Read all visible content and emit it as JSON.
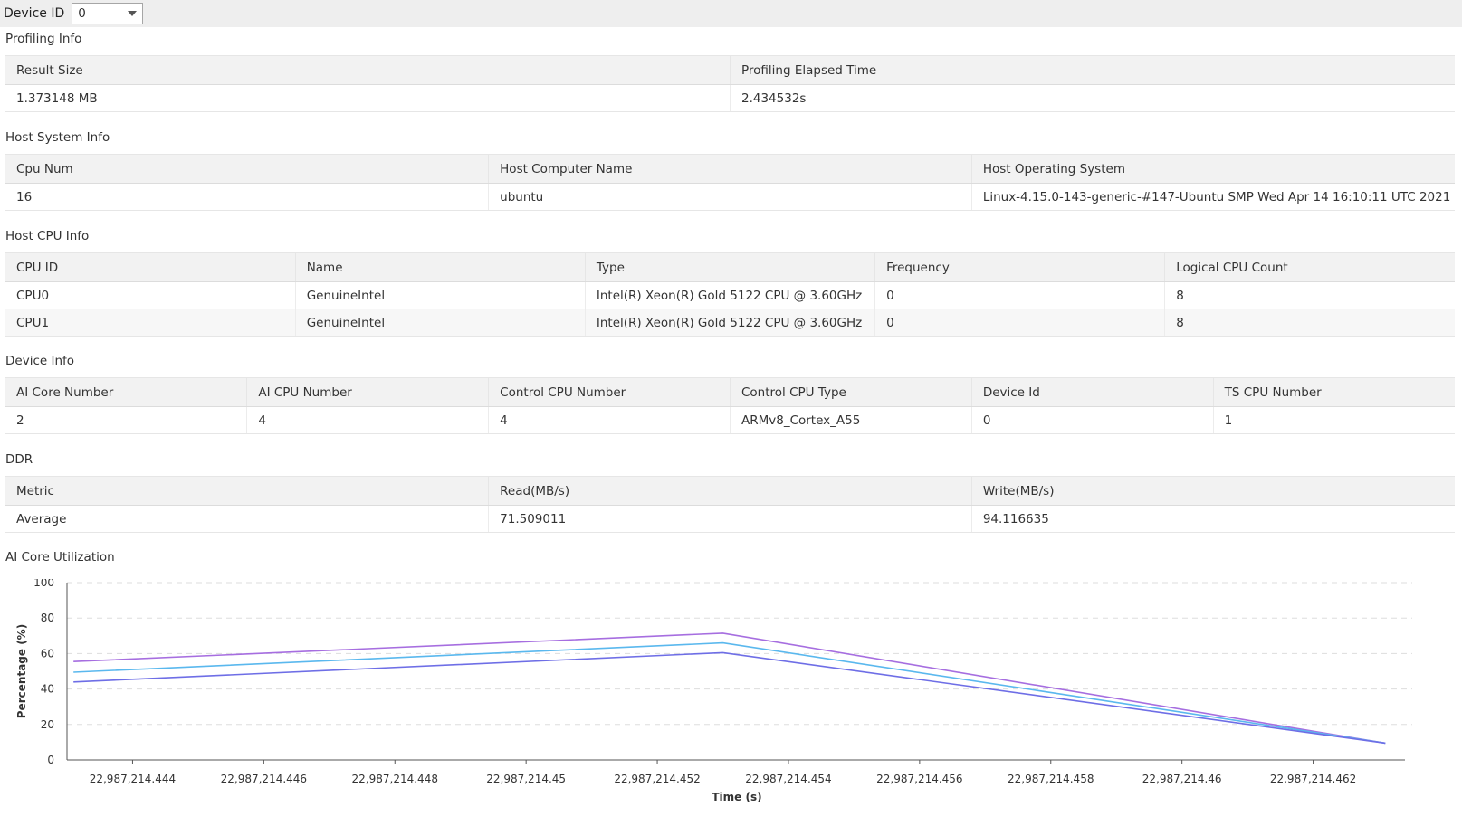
{
  "topbar": {
    "label": "Device ID",
    "device_select_value": "0"
  },
  "profiling": {
    "title": "Profiling Info",
    "headers": [
      "Result Size",
      "Profiling Elapsed Time"
    ],
    "rows": [
      [
        "1.373148 MB",
        "2.434532s"
      ]
    ]
  },
  "host_system": {
    "title": "Host System Info",
    "headers": [
      "Cpu Num",
      "Host Computer Name",
      "Host Operating System"
    ],
    "rows": [
      [
        "16",
        "ubuntu",
        "Linux-4.15.0-143-generic-#147-Ubuntu SMP Wed Apr 14 16:10:11 UTC 2021"
      ]
    ]
  },
  "host_cpu": {
    "title": "Host CPU Info",
    "headers": [
      "CPU ID",
      "Name",
      "Type",
      "Frequency",
      "Logical CPU Count"
    ],
    "rows": [
      [
        "CPU0",
        "GenuineIntel",
        "Intel(R) Xeon(R) Gold 5122 CPU @ 3.60GHz",
        "0",
        "8"
      ],
      [
        "CPU1",
        "GenuineIntel",
        "Intel(R) Xeon(R) Gold 5122 CPU @ 3.60GHz",
        "0",
        "8"
      ]
    ]
  },
  "device_info": {
    "title": "Device Info",
    "headers": [
      "AI Core Number",
      "AI CPU Number",
      "Control CPU Number",
      "Control CPU Type",
      "Device Id",
      "TS CPU Number"
    ],
    "rows": [
      [
        "2",
        "4",
        "4",
        "ARMv8_Cortex_A55",
        "0",
        "1"
      ]
    ]
  },
  "ddr": {
    "title": "DDR",
    "headers": [
      "Metric",
      "Read(MB/s)",
      "Write(MB/s)"
    ],
    "rows": [
      [
        "Average",
        "71.509011",
        "94.116635"
      ]
    ]
  },
  "ai_core": {
    "title": "AI Core Utilization"
  },
  "chart_data": {
    "type": "line",
    "title": "",
    "xlabel": "Time (s)",
    "ylabel": "Percentage (%)",
    "xlim": [
      22987214.443,
      22987214.4634
    ],
    "ylim": [
      0,
      100
    ],
    "grid": "horizontal-dashed",
    "x_tick_labels": [
      "22,987,214.444",
      "22,987,214.446",
      "22,987,214.448",
      "22,987,214.45",
      "22,987,214.452",
      "22,987,214.454",
      "22,987,214.456",
      "22,987,214.458",
      "22,987,214.46",
      "22,987,214.462"
    ],
    "x_ticks": [
      22987214.444,
      22987214.446,
      22987214.448,
      22987214.45,
      22987214.452,
      22987214.454,
      22987214.456,
      22987214.458,
      22987214.46,
      22987214.462
    ],
    "y_ticks": [
      0,
      20,
      40,
      60,
      80,
      100
    ],
    "x": [
      22987214.4431,
      22987214.453,
      22987214.4631
    ],
    "series": [
      {
        "color": "#a66ee0",
        "values": [
          55.5,
          71.5,
          9.5
        ]
      },
      {
        "color": "#5ab8ee",
        "values": [
          49.5,
          66,
          9.5
        ]
      },
      {
        "color": "#6e6ee6",
        "values": [
          44,
          60.5,
          9.5
        ]
      }
    ]
  }
}
